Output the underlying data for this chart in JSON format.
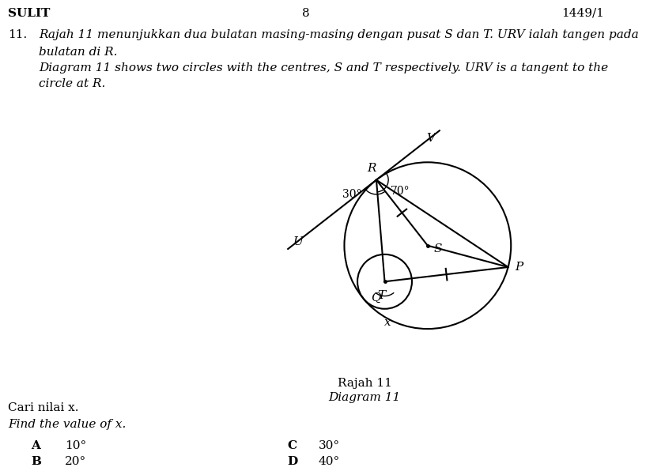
{
  "title": "SULIT",
  "page_num": "8",
  "ref": "1449/1",
  "question_num": "11.",
  "malay_line1": "Rajah 11 menunjukkan dua bulatan masing-masing dengan pusat S dan T. URV ialah tangen pada",
  "malay_line2": "bulatan di R.",
  "eng_line1": "Diagram 11 shows two circles with the centres, S and T respectively. URV is a tangent to the",
  "eng_line2": "circle at R.",
  "diagram_label1": "Rajah 11",
  "diagram_label2": "Diagram 11",
  "q_malay": "Cari nilai x.",
  "q_eng": "Find the value of x.",
  "opt_A": "A",
  "opt_B": "B",
  "opt_C": "C",
  "opt_D": "D",
  "val_A": "10°",
  "val_B": "20°",
  "val_C": "30°",
  "val_D": "40°",
  "angle_70": "70°",
  "angle_30": "30°",
  "angle_x": "x",
  "label_R": "R",
  "label_S": "S",
  "label_T": "T",
  "label_Q": "Q",
  "label_P": "P",
  "label_U": "U",
  "label_V": "V",
  "bg": "#ffffff",
  "fg": "#000000"
}
